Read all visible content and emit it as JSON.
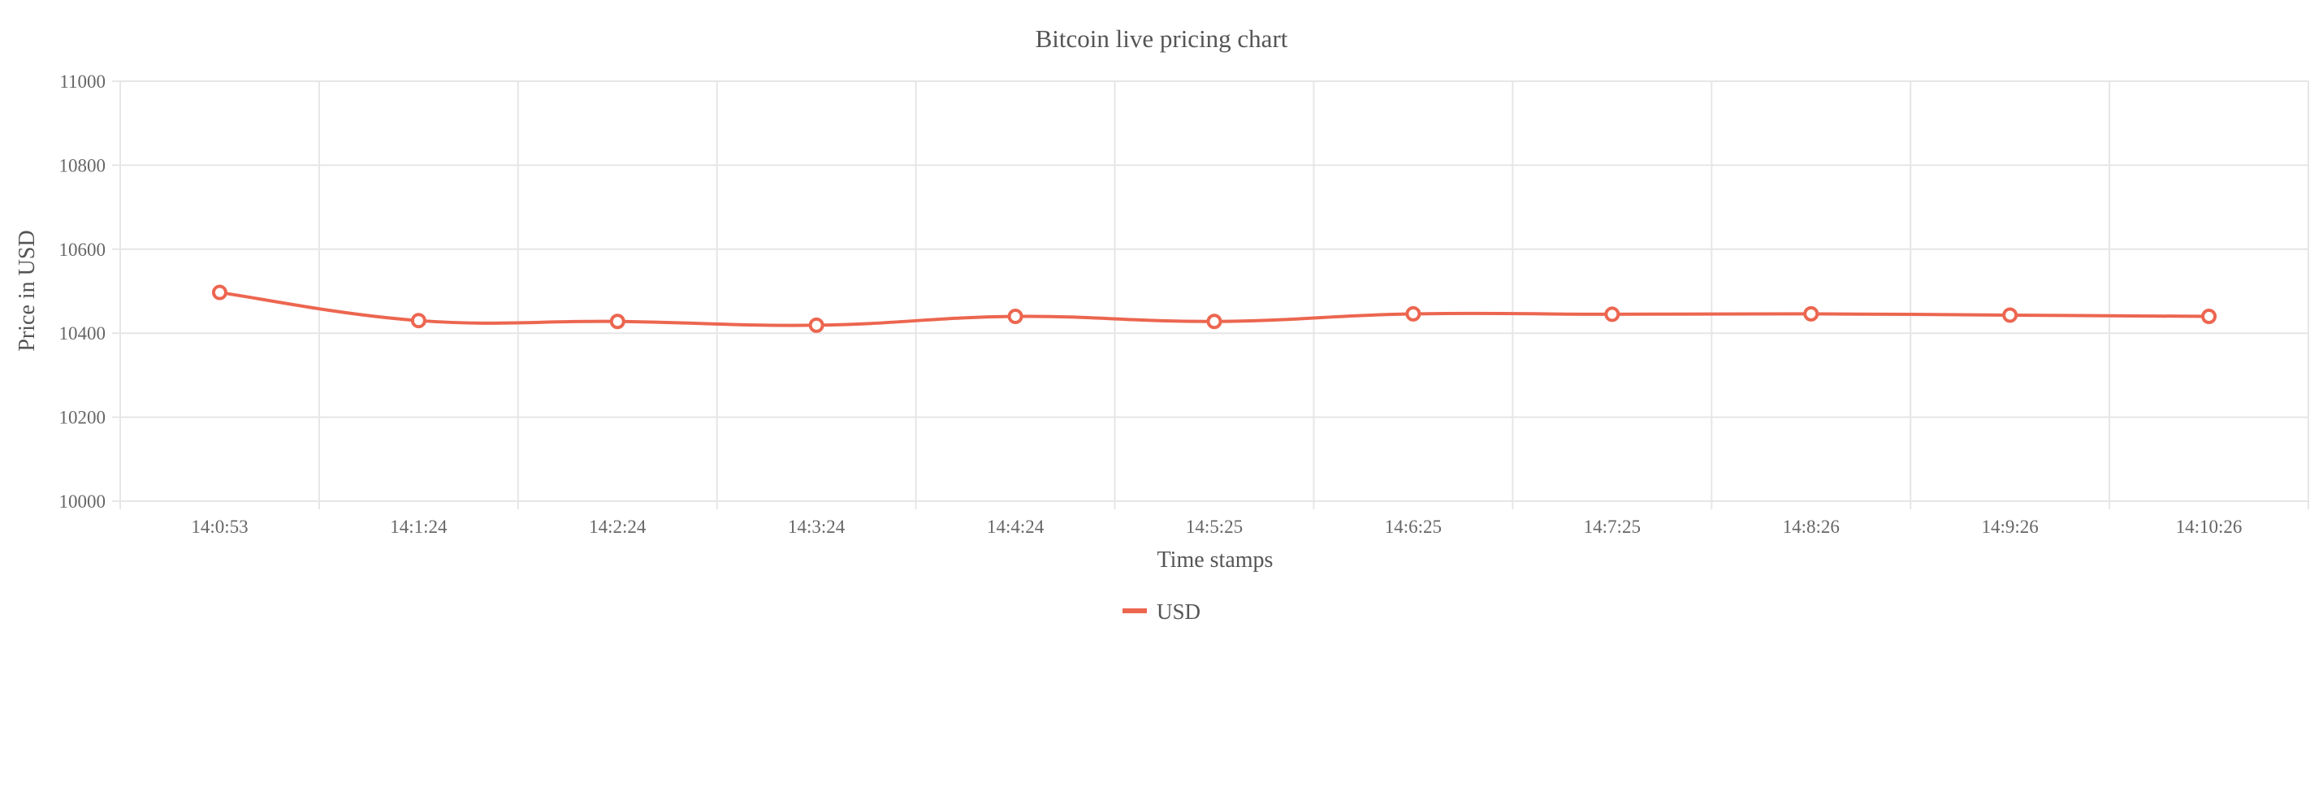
{
  "chart_data": {
    "type": "line",
    "title": "Bitcoin live pricing chart",
    "xlabel": "Time stamps",
    "ylabel": "Price in USD",
    "categories": [
      "14:0:53",
      "14:1:24",
      "14:2:24",
      "14:3:24",
      "14:4:24",
      "14:5:25",
      "14:6:25",
      "14:7:25",
      "14:8:26",
      "14:9:26",
      "14:10:26"
    ],
    "series": [
      {
        "name": "USD",
        "color": "#ec6650",
        "values": [
          10497,
          10430,
          10428,
          10419,
          10440,
          10428,
          10446,
          10445,
          10446,
          10443,
          10440
        ]
      }
    ],
    "ylim": [
      10000,
      11000
    ],
    "yticks": [
      "10000",
      "10200",
      "10400",
      "10600",
      "10800",
      "11000"
    ],
    "grid": true,
    "legend": "bottom-center"
  }
}
